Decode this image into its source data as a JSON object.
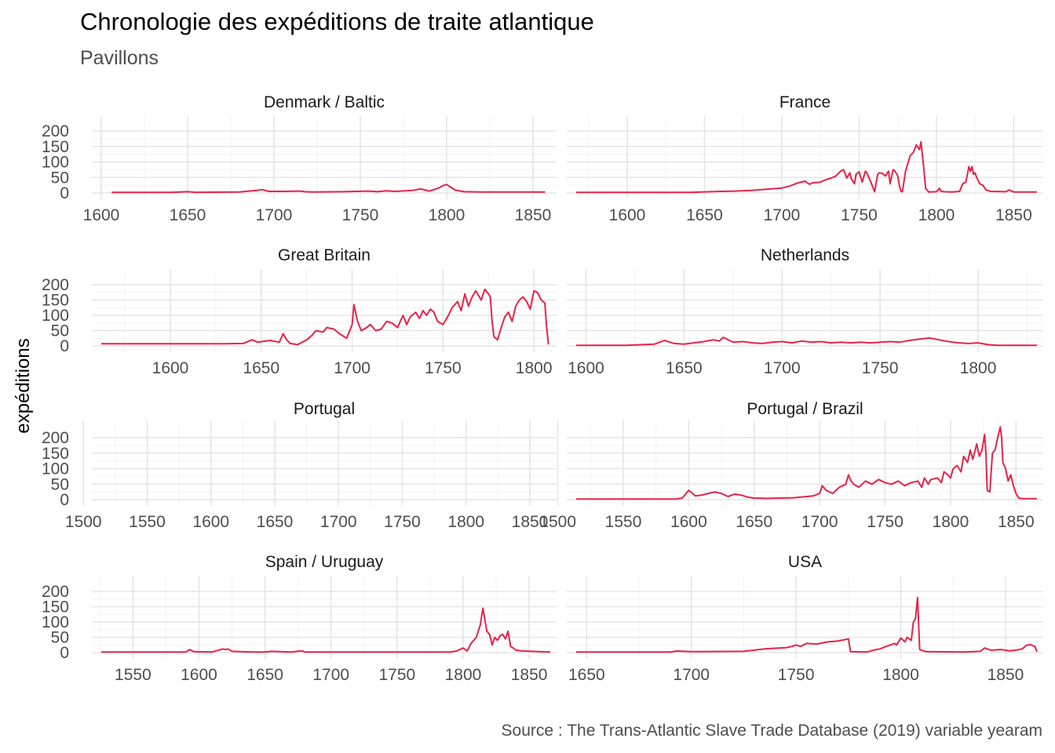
{
  "title": "Chronologie des expéditions de traite atlantique",
  "subtitle": "Pavillons",
  "caption": "Source : The Trans-Atlantic Slave Trade Database (2019) variable yearam",
  "ylabel": "expéditions",
  "line_color": "#e8224a",
  "chart_data": {
    "type": "line",
    "title": "Chronologie des expéditions de traite atlantique",
    "subtitle": "Pavillons",
    "ylabel": "expéditions",
    "grid": true,
    "y_ticks": [
      0,
      50,
      100,
      150,
      200
    ],
    "panels": [
      {
        "name": "Denmark / Baltic",
        "xlim": [
          1600,
          1860
        ],
        "x_ticks": [
          1600,
          1650,
          1700,
          1750,
          1800,
          1850
        ],
        "ylim": [
          0,
          230
        ],
        "x": [
          1606,
          1640,
          1650,
          1655,
          1680,
          1690,
          1693,
          1697,
          1705,
          1715,
          1718,
          1722,
          1740,
          1755,
          1760,
          1765,
          1770,
          1780,
          1785,
          1790,
          1795,
          1798,
          1800,
          1802,
          1805,
          1810,
          1820,
          1857
        ],
        "y": [
          2,
          2,
          4,
          2,
          3,
          8,
          11,
          5,
          5,
          6,
          4,
          3,
          4,
          6,
          4,
          7,
          5,
          8,
          13,
          6,
          15,
          24,
          27,
          20,
          9,
          4,
          3,
          3
        ]
      },
      {
        "name": "France",
        "xlim": [
          1567,
          1865
        ],
        "x_ticks": [
          1600,
          1650,
          1700,
          1750,
          1800,
          1850
        ],
        "ylim": [
          0,
          230
        ],
        "x": [
          1567,
          1640,
          1660,
          1670,
          1680,
          1690,
          1700,
          1705,
          1710,
          1715,
          1718,
          1720,
          1725,
          1728,
          1732,
          1735,
          1738,
          1740,
          1742,
          1744,
          1745,
          1747,
          1748,
          1750,
          1752,
          1754,
          1755,
          1758,
          1760,
          1762,
          1763,
          1765,
          1767,
          1769,
          1770,
          1772,
          1773,
          1775,
          1776,
          1777,
          1778,
          1780,
          1783,
          1785,
          1787,
          1789,
          1790,
          1791,
          1792,
          1793,
          1795,
          1800,
          1802,
          1803,
          1805,
          1810,
          1815,
          1817,
          1819,
          1820,
          1821,
          1822,
          1823,
          1824,
          1825,
          1826,
          1828,
          1830,
          1832,
          1835,
          1845,
          1847,
          1850,
          1865
        ],
        "y": [
          2,
          2,
          5,
          6,
          8,
          12,
          16,
          22,
          32,
          38,
          28,
          33,
          35,
          42,
          48,
          55,
          70,
          75,
          48,
          65,
          45,
          30,
          60,
          68,
          35,
          70,
          65,
          30,
          4,
          60,
          65,
          63,
          55,
          70,
          30,
          75,
          72,
          55,
          25,
          5,
          4,
          70,
          120,
          130,
          155,
          140,
          165,
          120,
          70,
          15,
          3,
          4,
          15,
          5,
          4,
          3,
          5,
          30,
          35,
          60,
          85,
          70,
          85,
          60,
          65,
          50,
          30,
          25,
          10,
          5,
          4,
          10,
          3,
          3
        ]
      },
      {
        "name": "Great Britain",
        "xlim": [
          1562,
          1809
        ],
        "x_ticks": [
          1600,
          1650,
          1700,
          1750,
          1800
        ],
        "ylim": [
          0,
          230
        ],
        "x": [
          1562,
          1630,
          1640,
          1645,
          1648,
          1655,
          1660,
          1662,
          1664,
          1666,
          1670,
          1675,
          1678,
          1680,
          1684,
          1686,
          1690,
          1693,
          1697,
          1700,
          1701,
          1703,
          1705,
          1708,
          1710,
          1713,
          1716,
          1719,
          1722,
          1725,
          1728,
          1730,
          1732,
          1735,
          1737,
          1739,
          1741,
          1743,
          1745,
          1747,
          1750,
          1753,
          1755,
          1758,
          1760,
          1762,
          1764,
          1766,
          1768,
          1771,
          1773,
          1775,
          1776,
          1777,
          1778,
          1780,
          1782,
          1784,
          1786,
          1788,
          1790,
          1792,
          1794,
          1796,
          1798,
          1800,
          1802,
          1804,
          1806,
          1807,
          1808
        ],
        "y": [
          7,
          7,
          8,
          20,
          12,
          18,
          12,
          40,
          20,
          8,
          4,
          20,
          35,
          50,
          45,
          60,
          55,
          40,
          25,
          70,
          135,
          80,
          50,
          60,
          70,
          50,
          55,
          80,
          75,
          60,
          100,
          70,
          95,
          110,
          90,
          115,
          100,
          120,
          110,
          80,
          70,
          100,
          125,
          145,
          115,
          170,
          130,
          160,
          180,
          150,
          185,
          170,
          160,
          80,
          30,
          20,
          60,
          95,
          110,
          80,
          130,
          150,
          160,
          145,
          120,
          180,
          175,
          150,
          140,
          60,
          5
        ]
      },
      {
        "name": "Netherlands",
        "xlim": [
          1595,
          1830
        ],
        "x_ticks": [
          1600,
          1650,
          1700,
          1750,
          1800
        ],
        "ylim": [
          0,
          230
        ],
        "x": [
          1595,
          1620,
          1635,
          1640,
          1643,
          1645,
          1650,
          1655,
          1660,
          1665,
          1668,
          1670,
          1672,
          1675,
          1680,
          1685,
          1690,
          1695,
          1700,
          1705,
          1710,
          1715,
          1720,
          1725,
          1730,
          1735,
          1740,
          1745,
          1750,
          1755,
          1760,
          1765,
          1770,
          1775,
          1780,
          1785,
          1790,
          1795,
          1800,
          1805,
          1810,
          1830
        ],
        "y": [
          2,
          2,
          6,
          18,
          12,
          8,
          6,
          10,
          14,
          20,
          16,
          28,
          22,
          12,
          14,
          10,
          8,
          12,
          14,
          10,
          16,
          12,
          14,
          10,
          12,
          10,
          12,
          10,
          12,
          14,
          12,
          18,
          22,
          26,
          20,
          14,
          10,
          8,
          10,
          4,
          2,
          2
        ]
      },
      {
        "name": "Portugal",
        "xlim": [
          1514,
          1866
        ],
        "x_ticks": [
          1500,
          1550,
          1600,
          1650,
          1700,
          1750,
          1800,
          1850
        ],
        "ylim": [
          0,
          255
        ],
        "x": [],
        "y": []
      },
      {
        "name": "Portugal / Brazil",
        "xlim": [
          1514,
          1866
        ],
        "x_ticks": [
          1500,
          1550,
          1600,
          1650,
          1700,
          1750,
          1800,
          1850
        ],
        "ylim": [
          0,
          255
        ],
        "x": [
          1514,
          1590,
          1595,
          1598,
          1600,
          1603,
          1605,
          1610,
          1615,
          1620,
          1625,
          1630,
          1635,
          1640,
          1645,
          1650,
          1660,
          1680,
          1695,
          1700,
          1702,
          1705,
          1710,
          1715,
          1720,
          1722,
          1724,
          1726,
          1730,
          1735,
          1740,
          1745,
          1750,
          1755,
          1760,
          1765,
          1770,
          1775,
          1778,
          1780,
          1783,
          1785,
          1790,
          1793,
          1795,
          1798,
          1800,
          1802,
          1805,
          1808,
          1810,
          1813,
          1815,
          1817,
          1820,
          1822,
          1824,
          1826,
          1827,
          1828,
          1830,
          1832,
          1834,
          1836,
          1838,
          1839,
          1840,
          1842,
          1844,
          1846,
          1848,
          1850,
          1852,
          1855,
          1866
        ],
        "y": [
          2,
          2,
          5,
          20,
          30,
          20,
          12,
          15,
          20,
          25,
          20,
          10,
          18,
          15,
          8,
          5,
          4,
          6,
          12,
          20,
          45,
          30,
          20,
          40,
          50,
          80,
          60,
          50,
          40,
          60,
          50,
          65,
          55,
          50,
          60,
          45,
          55,
          60,
          40,
          70,
          50,
          65,
          70,
          55,
          90,
          80,
          70,
          100,
          110,
          90,
          140,
          120,
          160,
          130,
          180,
          140,
          160,
          210,
          150,
          30,
          25,
          150,
          160,
          200,
          235,
          200,
          120,
          100,
          60,
          80,
          45,
          20,
          5,
          3,
          3
        ]
      },
      {
        "name": "Spain / Uruguay",
        "xlim": [
          1526,
          1866
        ],
        "x_ticks": [
          1550,
          1600,
          1650,
          1700,
          1750,
          1800,
          1850
        ],
        "ylim": [
          0,
          230
        ],
        "x": [
          1526,
          1590,
          1593,
          1596,
          1610,
          1618,
          1620,
          1622,
          1625,
          1640,
          1650,
          1655,
          1670,
          1678,
          1680,
          1700,
          1750,
          1790,
          1795,
          1800,
          1803,
          1806,
          1810,
          1813,
          1815,
          1816,
          1818,
          1820,
          1822,
          1824,
          1826,
          1828,
          1830,
          1832,
          1834,
          1836,
          1838,
          1840,
          1845,
          1866
        ],
        "y": [
          2,
          2,
          10,
          3,
          2,
          12,
          10,
          12,
          4,
          2,
          2,
          4,
          2,
          6,
          2,
          2,
          2,
          2,
          5,
          15,
          5,
          30,
          50,
          90,
          145,
          120,
          70,
          60,
          25,
          50,
          40,
          55,
          60,
          45,
          70,
          20,
          15,
          8,
          5,
          2
        ]
      },
      {
        "name": "USA",
        "xlim": [
          1645,
          1865
        ],
        "x_ticks": [
          1650,
          1700,
          1750,
          1800,
          1850
        ],
        "ylim": [
          0,
          230
        ],
        "x": [
          1645,
          1690,
          1693,
          1700,
          1725,
          1730,
          1735,
          1740,
          1745,
          1748,
          1750,
          1752,
          1755,
          1760,
          1765,
          1770,
          1773,
          1775,
          1776,
          1784,
          1787,
          1790,
          1793,
          1795,
          1797,
          1798,
          1800,
          1802,
          1803,
          1805,
          1806,
          1807,
          1808,
          1809,
          1812,
          1830,
          1838,
          1840,
          1843,
          1848,
          1852,
          1855,
          1858,
          1860,
          1862,
          1864,
          1865
        ],
        "y": [
          2,
          2,
          5,
          3,
          4,
          8,
          12,
          14,
          16,
          20,
          25,
          20,
          30,
          28,
          35,
          38,
          42,
          45,
          3,
          2,
          8,
          12,
          20,
          25,
          30,
          25,
          48,
          35,
          50,
          40,
          100,
          110,
          180,
          10,
          3,
          2,
          4,
          15,
          8,
          10,
          6,
          8,
          12,
          24,
          26,
          20,
          3
        ]
      }
    ]
  }
}
